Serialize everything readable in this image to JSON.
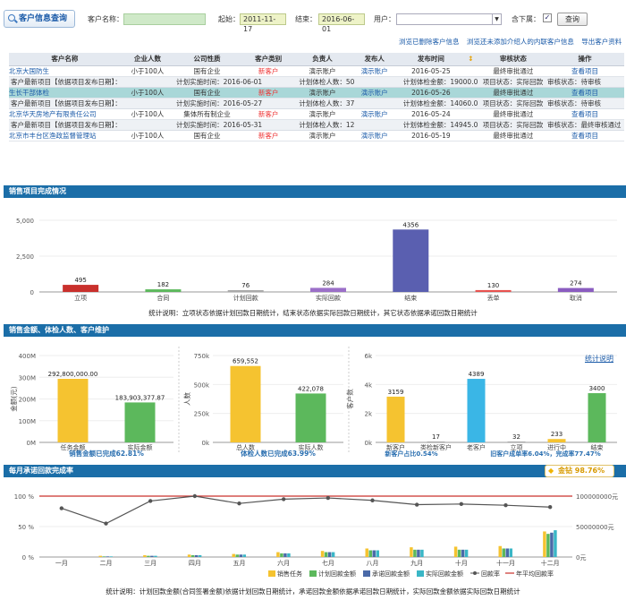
{
  "header": {
    "title": "客户信息查询",
    "customer_label": "客户名称：",
    "customer_value": "",
    "start_label": "起始：",
    "start_value": "2011-11-17",
    "end_label": "结束：",
    "end_value": "2016-06-01",
    "user_label": "用户：",
    "user_value": "",
    "sub_label": "含下属：",
    "query_button": "查询"
  },
  "links": [
    "浏览已删除客户信息",
    "浏览还未添加介绍人的内联客户信息",
    "导出客户资料"
  ],
  "table": {
    "columns": [
      "客户名称",
      "企业人数",
      "公司性质",
      "客户类别",
      "负责人",
      "发布人",
      "发布时间",
      "",
      "审核状态",
      "操作"
    ],
    "rows": [
      {
        "name": "北京大国防生",
        "size": "小于100人",
        "nature": "国有企业",
        "category": "新客户",
        "owner": "演示账户",
        "publisher": "演示账户",
        "date": "2016-05-25",
        "status": "最终审批通过",
        "action": "查看项目",
        "sub": {
          "a": "客户最新项目【依据项目发布日期】：",
          "b": "计划实施时间：2016-06-01",
          "c": "计划体检人数：50",
          "d": "计划体检金额：19000.0",
          "e": "项目状态：实际回款",
          "f": "审核状态：待审核"
        }
      },
      {
        "name": "生长干部体检",
        "size": "小于100人",
        "nature": "国有企业",
        "category": "新客户",
        "owner": "演示账户",
        "publisher": "演示账户",
        "date": "2016-05-26",
        "status": "最终审批通过",
        "action": "查看项目",
        "sub": {
          "a": "客户最新项目【依据项目发布日期】：",
          "b": "计划实施时间：2016-05-27",
          "c": "计划体检人数：37",
          "d": "计划体检金额：14060.0",
          "e": "项目状态：实际回款",
          "f": "审核状态：待审核"
        }
      },
      {
        "name": "北京华天房地产有限责任公司",
        "size": "小于100人",
        "nature": "集体所有制企业",
        "category": "新客户",
        "owner": "演示账户",
        "publisher": "演示账户",
        "date": "2016-05-24",
        "status": "最终审批通过",
        "action": "查看项目",
        "sub": {
          "a": "客户最新项目【依据项目发布日期】：",
          "b": "计划实施时间：2016-05-31",
          "c": "计划体检人数：12",
          "d": "计划体检金额：14945.0",
          "e": "项目状态：实际回款",
          "f": "审核状态：最终审核通过"
        }
      },
      {
        "name": "北京市丰台区渔政监督管理站",
        "size": "小于100人",
        "nature": "国有企业",
        "category": "新客户",
        "owner": "演示账户",
        "publisher": "演示账户",
        "date": "2016-05-19",
        "status": "最终审批通过",
        "action": "查看项目"
      }
    ]
  },
  "sections": {
    "sales": "销售项目完成情况",
    "amounts": "销售金额、体检人数、客户维护",
    "monthly": "每月承诺回款完成率"
  },
  "chart_data": [
    {
      "type": "bar",
      "title": "销售项目完成情况",
      "categories": [
        "立项",
        "合同",
        "计划回款",
        "实际回款",
        "结束",
        "丢单",
        "取消"
      ],
      "values": [
        495,
        182,
        76,
        284,
        4356,
        130,
        274
      ],
      "ylim": [
        0,
        5000
      ],
      "yticks": [
        "0",
        "2,500",
        "5,000"
      ],
      "colors": [
        "#c9302c",
        "#5cb85c",
        "#aaaaaa",
        "#9b6fc8",
        "#5a5fb0",
        "#e8534f",
        "#8a5cc0"
      ],
      "note": "统计说明：立项状态依据计划回款日期统计，结束状态依据实际回款日期统计，其它状态依据承诺回款日期统计"
    },
    {
      "type": "bar",
      "ylabel": "金额(元)",
      "categories": [
        "任务金额",
        "实际金额"
      ],
      "values": [
        292800000.0,
        183903377.87
      ],
      "labels": [
        "292,800,000.00",
        "183,903,377.87"
      ],
      "yticks": [
        "0M",
        "100M",
        "200M",
        "300M",
        "400M"
      ],
      "ylim": [
        0,
        400000000
      ],
      "colors": [
        "#f5c330",
        "#5cb85c"
      ],
      "footer": "销售金额已完成62.81%"
    },
    {
      "type": "bar",
      "ylabel": "人数",
      "categories": [
        "总人数",
        "实际人数"
      ],
      "values": [
        659552,
        422078
      ],
      "labels": [
        "659,552",
        "422,078"
      ],
      "yticks": [
        "0k",
        "250k",
        "500k",
        "750k"
      ],
      "ylim": [
        0,
        750000
      ],
      "colors": [
        "#f5c330",
        "#5cb85c"
      ],
      "footer": "体检人数已完成63.99%"
    },
    {
      "type": "bar",
      "ylabel": "客户数",
      "categories": [
        "新客户",
        "类检新客户",
        "老客户",
        "立项",
        "进行中",
        "结束"
      ],
      "values": [
        3159,
        17,
        4389,
        32,
        233,
        3400
      ],
      "yticks": [
        "0k",
        "2k",
        "4k",
        "6k"
      ],
      "ylim": [
        0,
        6000
      ],
      "colors": [
        "#f5c330",
        "#aaaaaa",
        "#3ab6e6",
        "#aaaaaa",
        "#f5c330",
        "#5cb85c"
      ],
      "footer_left": "新客户占比0.54%",
      "footer_right": "旧客户成单率6.04%，完成率77.47%",
      "link": "统计说明"
    },
    {
      "type": "bar",
      "categories": [
        "一月",
        "二月",
        "三月",
        "四月",
        "五月",
        "六月",
        "七月",
        "八月",
        "九月",
        "十月",
        "十一月",
        "十二月"
      ],
      "series": [
        {
          "name": "销售任务",
          "color": "#f5c330",
          "values": [
            0,
            2,
            3,
            4,
            5,
            8,
            10,
            14,
            16,
            17,
            18,
            42
          ]
        },
        {
          "name": "计划回款金额",
          "color": "#5cb85c",
          "values": [
            0,
            1,
            2,
            3,
            4,
            6,
            8,
            11,
            12,
            12,
            14,
            38
          ]
        },
        {
          "name": "承诺回款金额",
          "color": "#4a6aa8",
          "values": [
            0,
            1,
            2,
            3,
            4,
            6,
            8,
            11,
            12,
            12,
            14,
            40
          ]
        },
        {
          "name": "实际回款金额",
          "color": "#3ab6c6",
          "values": [
            0,
            1,
            2,
            3,
            4,
            6,
            8,
            11,
            12,
            12,
            14,
            44
          ]
        }
      ],
      "line": {
        "name": "回款率",
        "color": "#555555",
        "values": [
          80,
          55,
          92,
          100,
          88,
          95,
          97,
          93,
          86,
          87,
          85,
          82
        ]
      },
      "avg": {
        "name": "年平均回款率",
        "color": "#c9302c",
        "value": 100
      },
      "yticks_left": [
        "0 %",
        "50 %",
        "100 %"
      ],
      "yticks_right": [
        "0元",
        "50000000元",
        "100000000元"
      ],
      "badge": "金钻 98.76%",
      "note": "统计说明：计划回款金额(合同签署金额)依据计划回款日期统计，承诺回款金额依据承诺回款日期统计，实际回款金额依据实际回款日期统计"
    }
  ]
}
